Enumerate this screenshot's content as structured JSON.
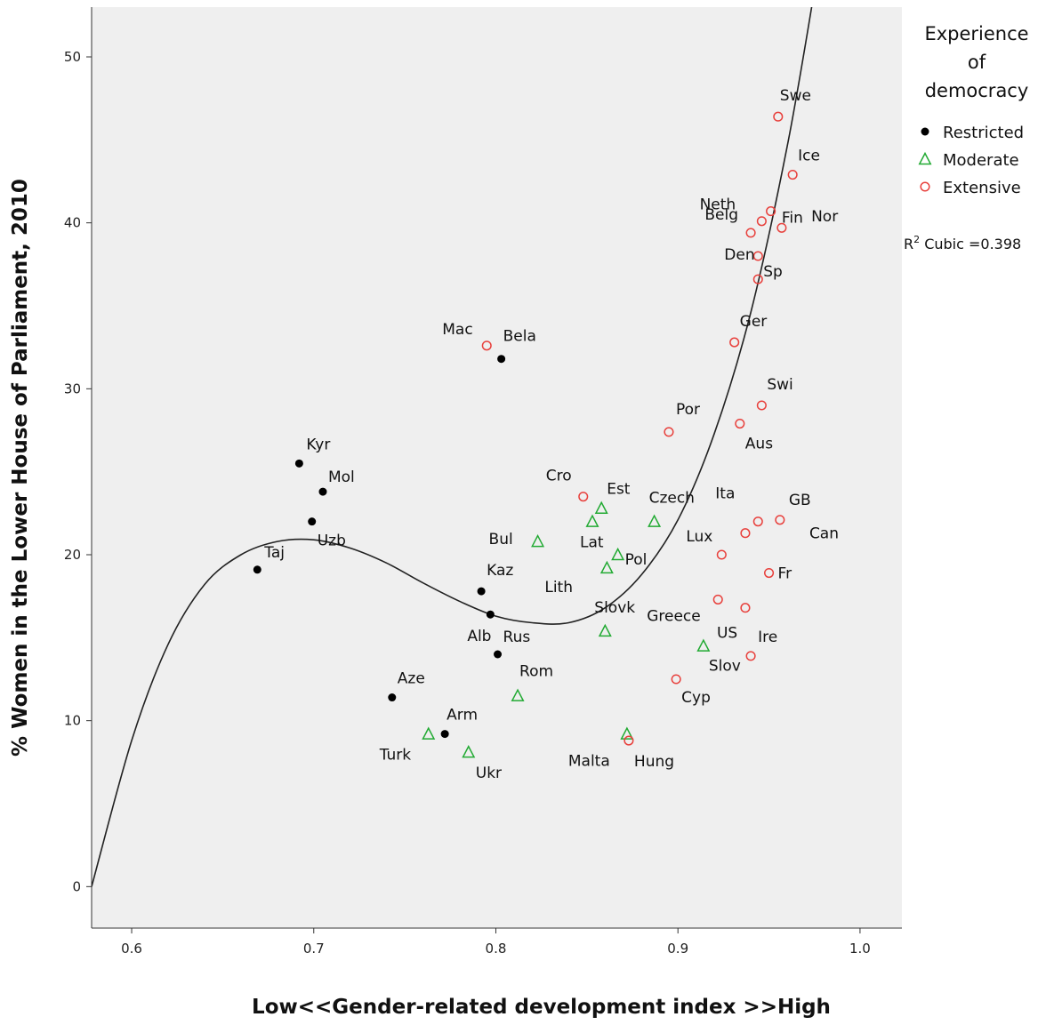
{
  "chart_data": {
    "type": "scatter",
    "xlabel": "Low<<Gender-related development index >>High",
    "ylabel": "% Women in the Lower House of Parliament, 2010",
    "xlim": [
      0.578,
      1.023
    ],
    "ylim": [
      -2.5,
      53
    ],
    "x_ticks": [
      0.6,
      0.7,
      0.8,
      0.9,
      1.0
    ],
    "x_tick_labels": [
      "0.6",
      "0.7",
      "0.8",
      "0.9",
      "1.0"
    ],
    "y_ticks": [
      0,
      10,
      20,
      30,
      40,
      50
    ],
    "y_tick_labels": [
      "0",
      "10",
      "20",
      "30",
      "40",
      "50"
    ],
    "grid": false,
    "legend": {
      "title_lines": [
        "Experience",
        "of",
        "democracy"
      ],
      "placement": "right"
    },
    "fit": {
      "type": "cubic",
      "label": "Cubic =0.398",
      "label_prefix": "R",
      "label_sup": "2",
      "curve": [
        [
          0.578,
          0.0
        ],
        [
          0.6,
          8.8
        ],
        [
          0.62,
          14.6
        ],
        [
          0.64,
          18.2
        ],
        [
          0.66,
          20.0
        ],
        [
          0.68,
          20.8
        ],
        [
          0.7,
          20.9
        ],
        [
          0.72,
          20.4
        ],
        [
          0.74,
          19.5
        ],
        [
          0.76,
          18.3
        ],
        [
          0.78,
          17.2
        ],
        [
          0.8,
          16.3
        ],
        [
          0.82,
          15.9
        ],
        [
          0.84,
          15.9
        ],
        [
          0.86,
          16.8
        ],
        [
          0.88,
          18.8
        ],
        [
          0.9,
          22.1
        ],
        [
          0.92,
          27.3
        ],
        [
          0.94,
          34.6
        ],
        [
          0.96,
          44.6
        ],
        [
          0.975,
          54.0
        ]
      ]
    },
    "series": [
      {
        "name": "Restricted",
        "color": "#000000",
        "marker": "dot",
        "points": [
          {
            "label": "Kyr",
            "x": 0.692,
            "y": 25.5
          },
          {
            "label": "Mol",
            "x": 0.705,
            "y": 23.8
          },
          {
            "label": "Uzb",
            "x": 0.699,
            "y": 22.0
          },
          {
            "label": "Taj",
            "x": 0.669,
            "y": 19.1
          },
          {
            "label": "Bela",
            "x": 0.803,
            "y": 31.8
          },
          {
            "label": "Kaz",
            "x": 0.792,
            "y": 17.8
          },
          {
            "label": "Alb",
            "x": 0.797,
            "y": 16.4
          },
          {
            "label": "Rus",
            "x": 0.801,
            "y": 14.0
          },
          {
            "label": "Aze",
            "x": 0.743,
            "y": 11.4
          },
          {
            "label": "Arm",
            "x": 0.772,
            "y": 9.2
          }
        ]
      },
      {
        "name": "Moderate",
        "color": "#22aa33",
        "marker": "triangle",
        "points": [
          {
            "label": "Est",
            "x": 0.858,
            "y": 22.8
          },
          {
            "label": "Lat",
            "x": 0.853,
            "y": 22.0
          },
          {
            "label": "Bul",
            "x": 0.823,
            "y": 20.8
          },
          {
            "label": "Czech",
            "x": 0.887,
            "y": 22.0
          },
          {
            "label": "Pol",
            "x": 0.867,
            "y": 20.0
          },
          {
            "label": "Lith",
            "x": 0.861,
            "y": 19.2
          },
          {
            "label": "Slovk",
            "x": 0.86,
            "y": 15.4
          },
          {
            "label": "Slov",
            "x": 0.914,
            "y": 14.5
          },
          {
            "label": "Rom",
            "x": 0.812,
            "y": 11.5
          },
          {
            "label": "Turk",
            "x": 0.763,
            "y": 9.2
          },
          {
            "label": "Ukr",
            "x": 0.785,
            "y": 8.1
          },
          {
            "label": "Malta",
            "x": 0.872,
            "y": 9.2
          }
        ]
      },
      {
        "name": "Extensive",
        "color": "#e8403c",
        "marker": "circle",
        "points": [
          {
            "label": "Swe",
            "x": 0.955,
            "y": 46.4
          },
          {
            "label": "Ice",
            "x": 0.963,
            "y": 42.9
          },
          {
            "label": "Neth",
            "x": 0.951,
            "y": 40.7
          },
          {
            "label": "Fin",
            "x": 0.957,
            "y": 39.7
          },
          {
            "label": "Belg",
            "x": 0.946,
            "y": 40.1
          },
          {
            "label": "Nor",
            "x": 0.94,
            "y": 39.4
          },
          {
            "label": "Den",
            "x": 0.944,
            "y": 38.0
          },
          {
            "label": "Sp",
            "x": 0.944,
            "y": 36.6
          },
          {
            "label": "Ger",
            "x": 0.931,
            "y": 32.8
          },
          {
            "label": "Mac",
            "x": 0.795,
            "y": 32.6
          },
          {
            "label": "Swi",
            "x": 0.946,
            "y": 29.0
          },
          {
            "label": "Aus",
            "x": 0.934,
            "y": 27.9
          },
          {
            "label": "Por",
            "x": 0.895,
            "y": 27.4
          },
          {
            "label": "Cro",
            "x": 0.848,
            "y": 23.5
          },
          {
            "label": "Ita",
            "x": 0.944,
            "y": 22.0
          },
          {
            "label": "GB",
            "x": 0.956,
            "y": 22.1
          },
          {
            "label": "Can",
            "x": 0.937,
            "y": 21.3
          },
          {
            "label": "Lux",
            "x": 0.924,
            "y": 20.0
          },
          {
            "label": "Fr",
            "x": 0.95,
            "y": 18.9
          },
          {
            "label": "Greece",
            "x": 0.922,
            "y": 17.3
          },
          {
            "label": "US",
            "x": 0.937,
            "y": 16.8
          },
          {
            "label": "Ire",
            "x": 0.94,
            "y": 13.9
          },
          {
            "label": "Cyp",
            "x": 0.899,
            "y": 12.5
          },
          {
            "label": "Hung",
            "x": 0.873,
            "y": 8.8
          }
        ]
      }
    ],
    "label_offsets_note": "",
    "labels_positions": {}
  }
}
